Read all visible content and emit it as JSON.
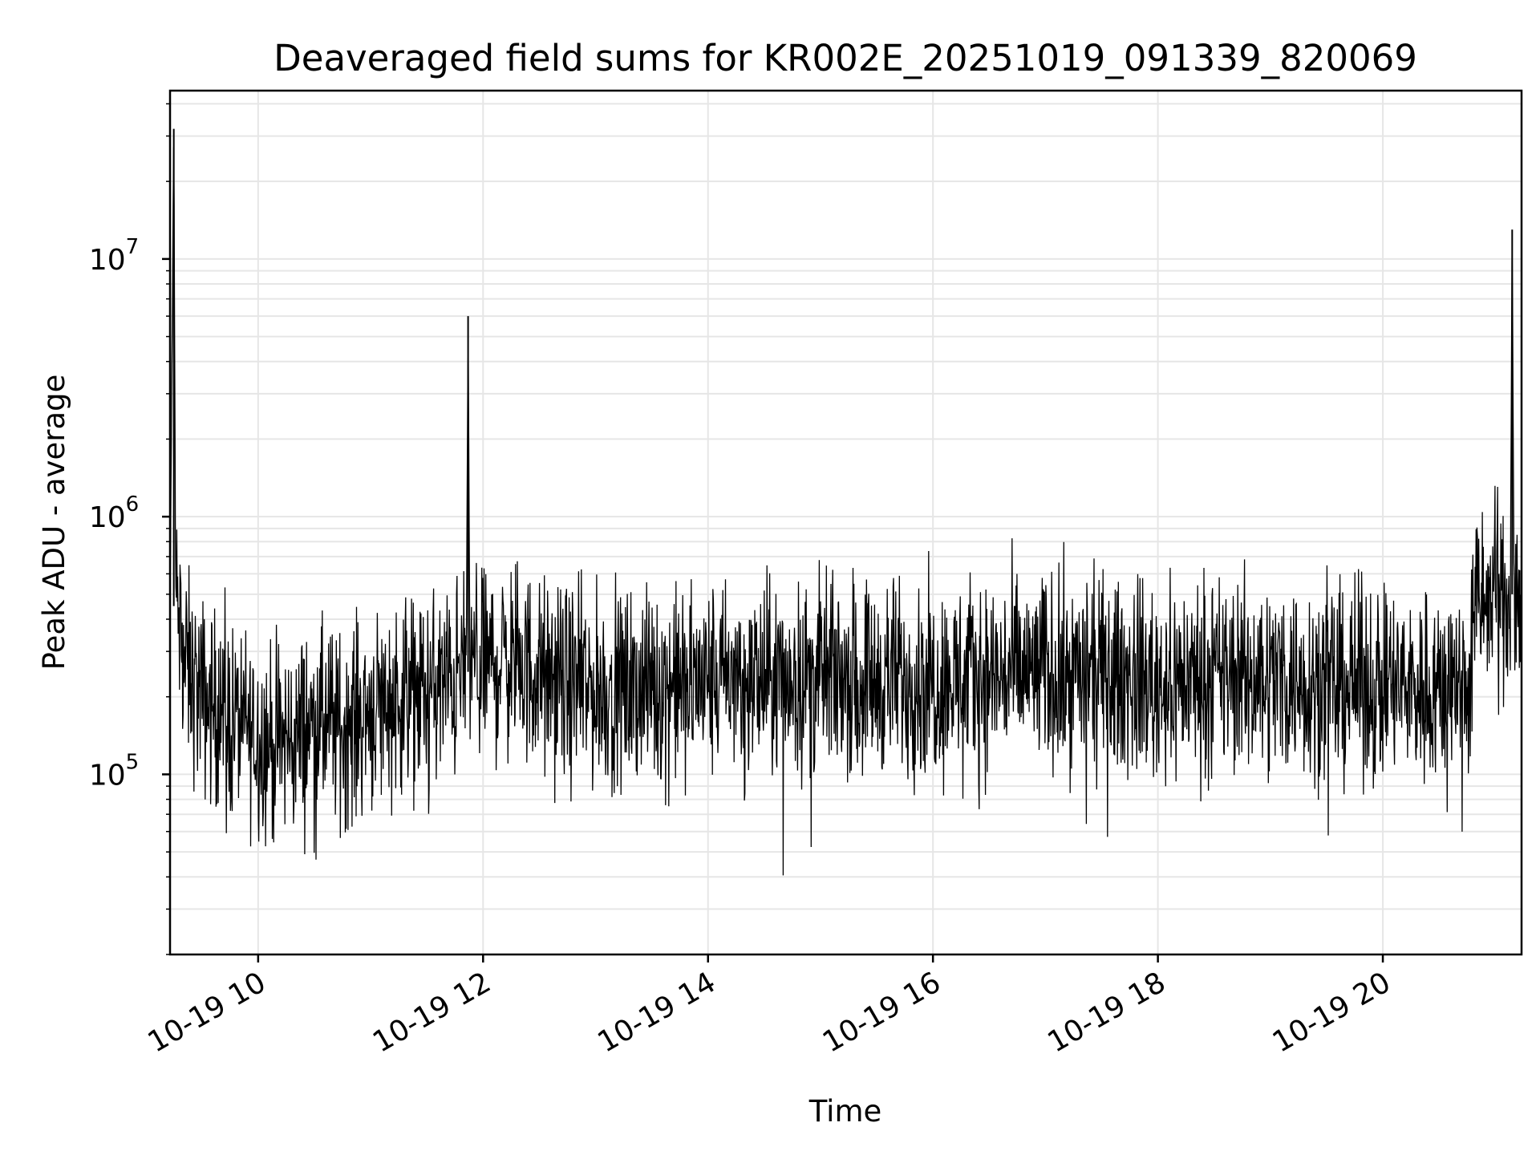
{
  "chart_data": {
    "type": "line",
    "title": "Deaveraged field sums for KR002E_20251019_091339_820069",
    "xlabel": "Time",
    "ylabel": "Peak ADU - average",
    "yscale": "log",
    "xlim": [
      "2025-10-19 09:13",
      "2025-10-19 21:14"
    ],
    "ylim": [
      20000,
      45000000
    ],
    "grid": true,
    "line_color": "#000000",
    "grid_color": "#e6e6e6",
    "x_ticks": [
      "2025-10-19 10:00",
      "2025-10-19 12:00",
      "2025-10-19 14:00",
      "2025-10-19 16:00",
      "2025-10-19 18:00",
      "2025-10-19 20:00"
    ],
    "x_tick_labels": [
      "10-19 10",
      "10-19 12",
      "10-19 14",
      "10-19 16",
      "10-19 18",
      "10-19 20"
    ],
    "y_ticks": [
      100000,
      1000000,
      10000000
    ],
    "y_tick_labels": [
      {
        "base": "10",
        "exp": "5"
      },
      {
        "base": "10",
        "exp": "6"
      },
      {
        "base": "10",
        "exp": "7"
      }
    ],
    "series": [
      {
        "x": [
          "2025-10-19 09:13",
          "2025-10-19 09:15",
          "2025-10-19 09:16",
          "2025-10-19 09:20",
          "2025-10-19 09:25",
          "2025-10-19 09:30",
          "2025-10-19 09:40",
          "2025-10-19 09:50",
          "2025-10-19 10:00",
          "2025-10-19 10:10",
          "2025-10-19 10:20",
          "2025-10-19 10:30",
          "2025-10-19 10:45",
          "2025-10-19 11:00",
          "2025-10-19 11:15",
          "2025-10-19 11:30",
          "2025-10-19 11:45",
          "2025-10-19 11:51",
          "2025-10-19 11:52",
          "2025-10-19 11:53",
          "2025-10-19 12:00",
          "2025-10-19 12:15",
          "2025-10-19 12:30",
          "2025-10-19 12:45",
          "2025-10-19 13:00",
          "2025-10-19 13:30",
          "2025-10-19 14:00",
          "2025-10-19 14:30",
          "2025-10-19 15:00",
          "2025-10-19 15:30",
          "2025-10-19 16:00",
          "2025-10-19 16:30",
          "2025-10-19 17:00",
          "2025-10-19 17:30",
          "2025-10-19 18:00",
          "2025-10-19 18:30",
          "2025-10-19 19:00",
          "2025-10-19 19:30",
          "2025-10-19 20:00",
          "2025-10-19 20:30",
          "2025-10-19 20:45",
          "2025-10-19 20:50",
          "2025-10-19 21:00",
          "2025-10-19 21:08",
          "2025-10-19 21:09",
          "2025-10-19 21:10",
          "2025-10-19 21:14"
        ],
        "values": [
          450000,
          32000000,
          500000,
          280000,
          230000,
          200000,
          170000,
          160000,
          140000,
          130000,
          140000,
          160000,
          150000,
          180000,
          200000,
          210000,
          230000,
          250000,
          6000000,
          260000,
          270000,
          280000,
          240000,
          220000,
          210000,
          220000,
          230000,
          230000,
          240000,
          240000,
          230000,
          240000,
          250000,
          240000,
          230000,
          240000,
          240000,
          230000,
          220000,
          220000,
          230000,
          450000,
          480000,
          500000,
          13000000,
          500000,
          450000
        ]
      }
    ],
    "noise_spread_decades": 0.35
  }
}
